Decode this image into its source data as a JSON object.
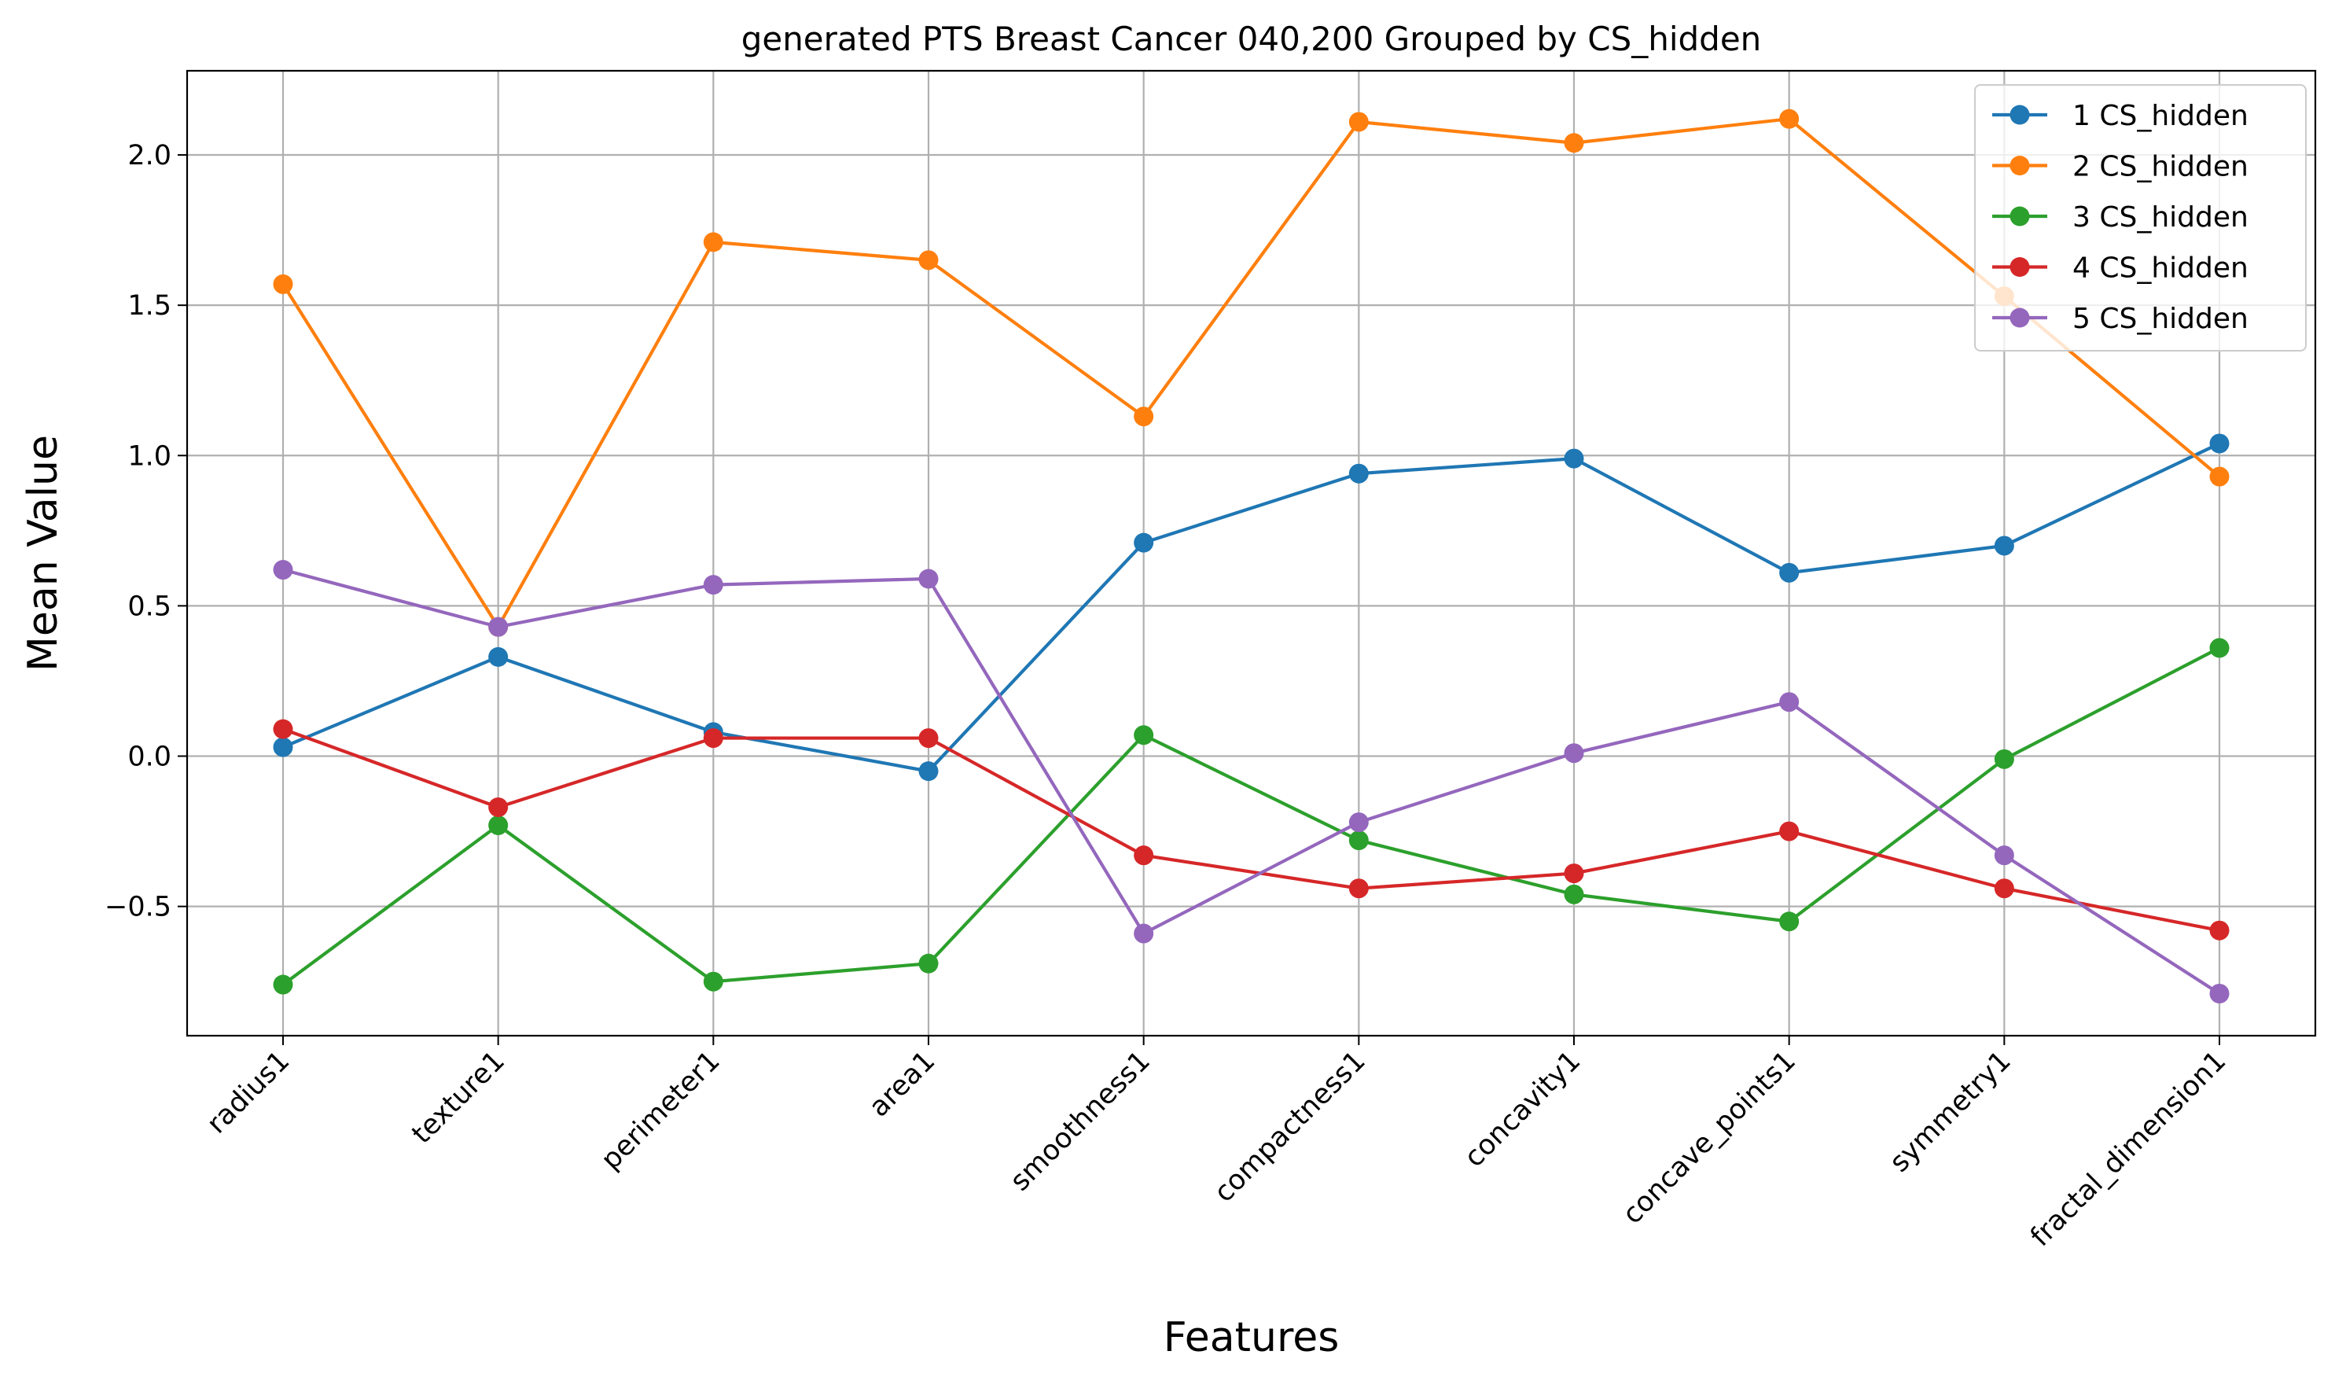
{
  "chart_data": {
    "type": "line",
    "title": "generated PTS Breast Cancer 040,200 Grouped by CS_hidden",
    "xlabel": "Features",
    "ylabel": "Mean Value",
    "categories": [
      "radius1",
      "texture1",
      "perimeter1",
      "area1",
      "smoothness1",
      "compactness1",
      "concavity1",
      "concave_points1",
      "symmetry1",
      "fractal_dimension1"
    ],
    "ylim": [
      -0.93,
      2.28
    ],
    "yticks": [
      -0.5,
      0.0,
      0.5,
      1.0,
      1.5,
      2.0
    ],
    "ytick_labels": [
      "−0.5",
      "0.0",
      "0.5",
      "1.0",
      "1.5",
      "2.0"
    ],
    "grid": true,
    "legend_position": "top-right",
    "series": [
      {
        "name": "1 CS_hidden",
        "color": "#1f77b4",
        "values": [
          0.03,
          0.33,
          0.08,
          -0.05,
          0.71,
          0.94,
          0.99,
          0.61,
          0.7,
          1.04
        ]
      },
      {
        "name": "2 CS_hidden",
        "color": "#ff7f0e",
        "values": [
          1.57,
          0.43,
          1.71,
          1.65,
          1.13,
          2.11,
          2.04,
          2.12,
          1.53,
          0.93
        ]
      },
      {
        "name": "3 CS_hidden",
        "color": "#2ca02c",
        "values": [
          -0.76,
          -0.23,
          -0.75,
          -0.69,
          0.07,
          -0.28,
          -0.46,
          -0.55,
          -0.01,
          0.36
        ]
      },
      {
        "name": "4 CS_hidden",
        "color": "#d62728",
        "values": [
          0.09,
          -0.17,
          0.06,
          0.06,
          -0.33,
          -0.44,
          -0.39,
          -0.25,
          -0.44,
          -0.58
        ]
      },
      {
        "name": "5 CS_hidden",
        "color": "#9467bd",
        "values": [
          0.62,
          0.43,
          0.57,
          0.59,
          -0.59,
          -0.22,
          0.01,
          0.18,
          -0.33,
          -0.79
        ]
      }
    ]
  }
}
